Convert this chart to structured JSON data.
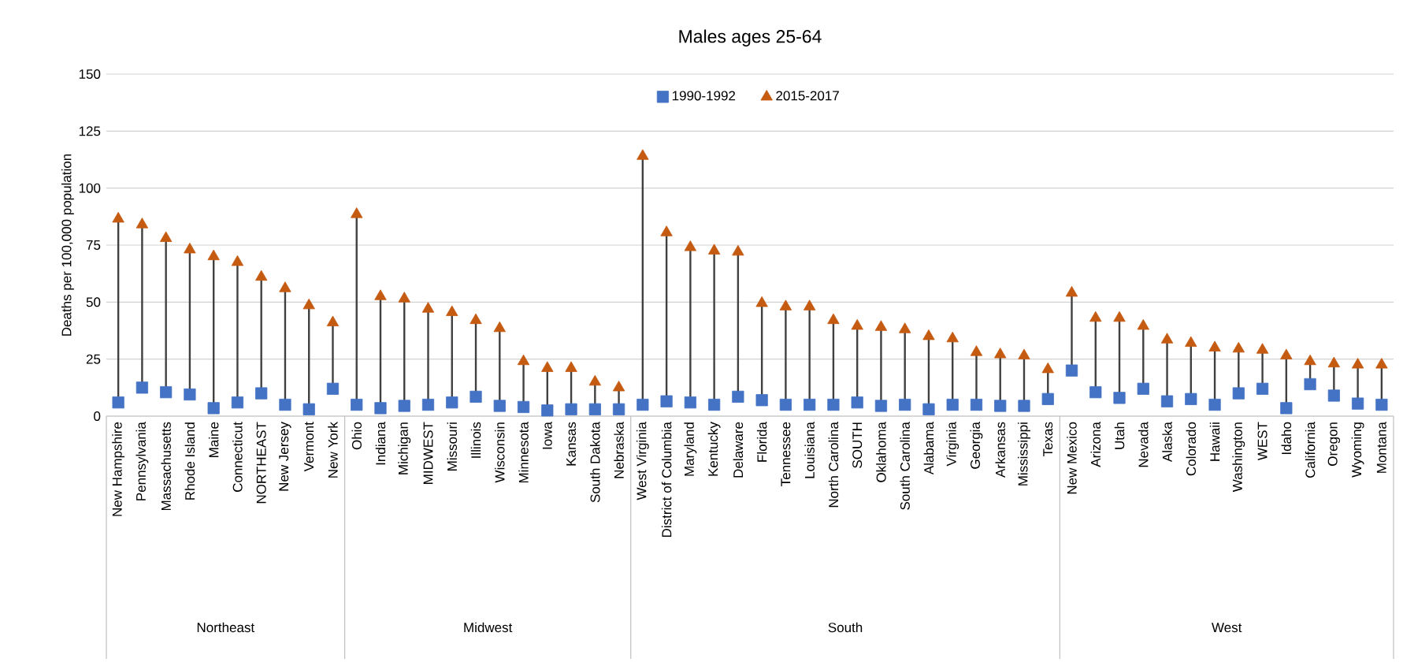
{
  "chart_data": {
    "type": "scatter",
    "title": "Males ages 25-64",
    "ylabel": "Deaths per 100,000 population",
    "categories": [
      "New Hampshire",
      "Pennsylvania",
      "Massachusetts",
      "Rhode Island",
      "Maine",
      "Connecticut",
      "NORTHEAST",
      "New Jersey",
      "Vermont",
      "New York",
      "Ohio",
      "Indiana",
      "Michigan",
      "MIDWEST",
      "Missouri",
      "Illinois",
      "Wisconsin",
      "Minnesota",
      "Iowa",
      "Kansas",
      "South Dakota",
      "Nebraska",
      "West Virginia",
      "District of Columbia",
      "Maryland",
      "Kentucky",
      "Delaware",
      "Florida",
      "Tennessee",
      "Louisiana",
      "North Carolina",
      "SOUTH",
      "Oklahoma",
      "South Carolina",
      "Alabama",
      "Virginia",
      "Georgia",
      "Arkansas",
      "Mississippi",
      "Texas",
      "New Mexico",
      "Arizona",
      "Utah",
      "Nevada",
      "Alaska",
      "Colorado",
      "Hawaii",
      "Washington",
      "WEST",
      "Idaho",
      "California",
      "Oregon",
      "Wyoming",
      "Montana"
    ],
    "series": [
      {
        "name": "1990-1992",
        "color": "#4472c4",
        "marker": "square",
        "values": [
          6,
          12.5,
          10.5,
          9.5,
          3.5,
          6,
          10,
          5,
          3,
          12,
          5,
          3.5,
          4.5,
          5,
          6,
          8.5,
          4.5,
          4,
          2.5,
          3,
          3,
          3,
          5,
          6.5,
          6,
          5,
          8.5,
          7,
          5,
          5,
          5,
          6,
          4.5,
          5,
          3,
          5,
          5,
          4.5,
          4.5,
          7.5,
          20,
          10.5,
          8,
          12,
          6.5,
          7.5,
          5,
          10,
          12,
          3.5,
          14,
          9,
          5.5,
          5
        ]
      },
      {
        "name": "2015-2017",
        "color": "#c55a11",
        "marker": "triangle",
        "values": [
          86.5,
          84,
          78,
          73,
          70,
          67.5,
          61,
          56,
          48.5,
          41,
          88.5,
          52.5,
          51.5,
          47,
          45.5,
          42,
          38.5,
          24,
          21,
          21,
          15,
          12.5,
          114,
          80.5,
          74,
          72.5,
          72,
          49.5,
          48,
          48,
          42,
          39.5,
          39,
          38,
          35,
          34,
          28,
          27,
          26.5,
          20.5,
          54,
          43,
          43,
          39.5,
          33.5,
          32,
          30,
          29.5,
          29,
          26.5,
          24,
          23,
          22.5,
          22.5
        ]
      }
    ],
    "ylim": [
      0,
      150
    ],
    "yticks": [
      0,
      25,
      50,
      75,
      100,
      125,
      150
    ],
    "grid": "y",
    "legend": "top",
    "annotations": [
      "Northeast",
      "Midwest",
      "South",
      "West"
    ]
  }
}
